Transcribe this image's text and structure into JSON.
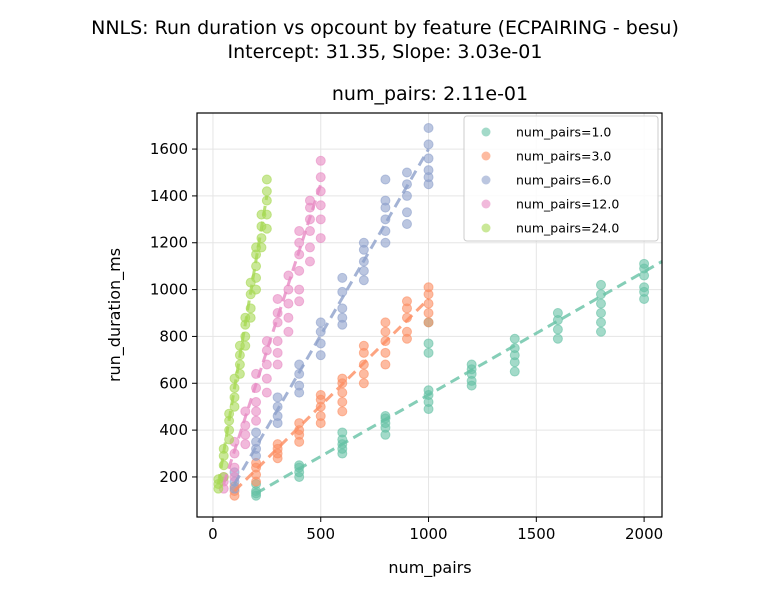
{
  "chart_data": {
    "type": "scatter",
    "title": "NNLS: Run duration vs opcount by feature (ECPAIRING - besu)",
    "subtitle": "Intercept: 31.35, Slope: 3.03e-01",
    "axes_title": "num_pairs: 2.11e-01",
    "xlabel": "num_pairs",
    "ylabel": "run_duration_ms",
    "xlim": [
      -74,
      2083
    ],
    "ylim": [
      29,
      1754
    ],
    "xticks": [
      0,
      500,
      1000,
      1500,
      2000
    ],
    "yticks": [
      200,
      400,
      600,
      800,
      1000,
      1200,
      1400,
      1600
    ],
    "grid": true,
    "legend_position": "top-right",
    "series": [
      {
        "name": "num_pairs=1.0",
        "color": "#66c2a5",
        "clusters": [
          [
            200,
            [
              120,
              130,
              140,
              170
            ]
          ],
          [
            400,
            [
              200,
              220,
              240,
              250
            ]
          ],
          [
            600,
            [
              300,
              320,
              340,
              360,
              390
            ]
          ],
          [
            800,
            [
              380,
              410,
              430,
              450,
              460
            ]
          ],
          [
            1000,
            [
              490,
              520,
              550,
              570,
              730,
              770,
              860
            ]
          ],
          [
            1200,
            [
              590,
              610,
              640,
              660,
              680
            ]
          ],
          [
            1400,
            [
              650,
              690,
              720,
              750,
              790
            ]
          ],
          [
            1600,
            [
              790,
              830,
              870,
              900
            ]
          ],
          [
            1800,
            [
              820,
              860,
              900,
              940,
              980,
              1020
            ]
          ],
          [
            2000,
            [
              960,
              990,
              1010,
              1060,
              1090,
              1110
            ]
          ]
        ],
        "fit": [
          [
            200,
            130
          ],
          [
            2100,
            1120
          ]
        ]
      },
      {
        "name": "num_pairs=3.0",
        "color": "#fc8d62",
        "clusters": [
          [
            100,
            [
              120,
              140,
              160
            ]
          ],
          [
            200,
            [
              180,
              210,
              240,
              260
            ]
          ],
          [
            300,
            [
              280,
              300,
              320,
              340
            ]
          ],
          [
            400,
            [
              350,
              380,
              400,
              430
            ]
          ],
          [
            500,
            [
              430,
              460,
              500,
              530,
              550
            ]
          ],
          [
            600,
            [
              480,
              520,
              560,
              600,
              620
            ]
          ],
          [
            700,
            [
              600,
              640,
              680,
              730,
              760
            ]
          ],
          [
            800,
            [
              680,
              730,
              780,
              820,
              860
            ]
          ],
          [
            900,
            [
              790,
              820,
              880,
              920,
              950
            ]
          ],
          [
            1000,
            [
              860,
              900,
              940,
              980,
              1010
            ]
          ]
        ],
        "fit": [
          [
            100,
            140
          ],
          [
            1000,
            960
          ]
        ]
      },
      {
        "name": "num_pairs=6.0",
        "color": "#8da0cb",
        "clusters": [
          [
            100,
            [
              150,
              180,
              220
            ]
          ],
          [
            200,
            [
              290,
              320,
              350,
              390
            ]
          ],
          [
            300,
            [
              430,
              460,
              500,
              540
            ]
          ],
          [
            400,
            [
              560,
              590,
              640,
              680
            ]
          ],
          [
            500,
            [
              720,
              770,
              820,
              860
            ]
          ],
          [
            600,
            [
              850,
              880,
              920,
              990,
              1050
            ]
          ],
          [
            700,
            [
              1040,
              1080,
              1120,
              1170,
              1200
            ]
          ],
          [
            800,
            [
              1200,
              1250,
              1300,
              1350,
              1380,
              1470
            ]
          ],
          [
            900,
            [
              1280,
              1330,
              1400,
              1450,
              1500
            ]
          ],
          [
            1000,
            [
              1450,
              1480,
              1510,
              1560,
              1620,
              1690
            ]
          ]
        ],
        "fit": [
          [
            100,
            170
          ],
          [
            1000,
            1600
          ]
        ]
      },
      {
        "name": "num_pairs=12.0",
        "color": "#e78ac3",
        "clusters": [
          [
            50,
            [
              150,
              180,
              200
            ]
          ],
          [
            100,
            [
              200,
              240,
              300,
              350
            ]
          ],
          [
            150,
            [
              340,
              380,
              420,
              480
            ]
          ],
          [
            200,
            [
              440,
              480,
              520,
              580,
              640
            ]
          ],
          [
            250,
            [
              560,
              620,
              680,
              740,
              780
            ]
          ],
          [
            300,
            [
              680,
              730,
              780,
              860,
              900,
              960
            ]
          ],
          [
            350,
            [
              820,
              880,
              940,
              1000,
              1060
            ]
          ],
          [
            400,
            [
              950,
              1000,
              1080,
              1150,
              1200,
              1250
            ]
          ],
          [
            450,
            [
              1120,
              1180,
              1250,
              1300,
              1350,
              1380
            ]
          ],
          [
            500,
            [
              1220,
              1300,
              1360,
              1420,
              1480,
              1550
            ]
          ]
        ],
        "fit": [
          [
            50,
            170
          ],
          [
            500,
            1450
          ]
        ]
      },
      {
        "name": "num_pairs=24.0",
        "color": "#a6d854",
        "clusters": [
          [
            25,
            [
              150,
              170,
              190
            ]
          ],
          [
            50,
            [
              200,
              250,
              290,
              320
            ]
          ],
          [
            75,
            [
              360,
              400,
              440,
              470
            ]
          ],
          [
            100,
            [
              500,
              540,
              580,
              620
            ]
          ],
          [
            125,
            [
              640,
              680,
              720,
              760
            ]
          ],
          [
            150,
            [
              760,
              800,
              850,
              880
            ]
          ],
          [
            175,
            [
              880,
              920,
              980,
              1030
            ]
          ],
          [
            200,
            [
              1000,
              1050,
              1100,
              1150,
              1180
            ]
          ],
          [
            225,
            [
              1180,
              1220,
              1270,
              1320
            ]
          ],
          [
            250,
            [
              1260,
              1320,
              1380,
              1420,
              1470
            ]
          ]
        ],
        "fit": [
          [
            25,
            170
          ],
          [
            250,
            1400
          ]
        ]
      }
    ]
  }
}
